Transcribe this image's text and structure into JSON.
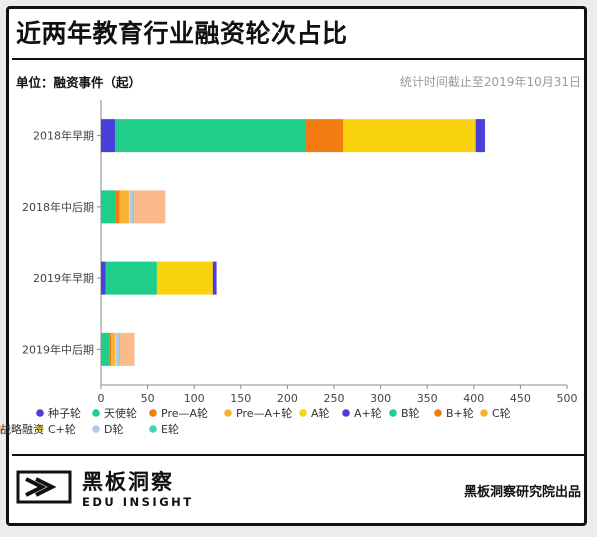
{
  "header": {
    "title": "近两年教育行业融资轮次占比",
    "unit": "单位：融资事件（起）",
    "note": "统计时间截止至2019年10月31日"
  },
  "footer": {
    "brand_cn": "黑板洞察",
    "brand_en": "EDU INSIGHT",
    "source": "黑板洞察研究院出品"
  },
  "chart_data": {
    "type": "bar",
    "orientation": "horizontal",
    "stacked": true,
    "categories": [
      "2018年早期",
      "2018年中后期",
      "2019年早期",
      "2019年中后期"
    ],
    "xlim": [
      0,
      500
    ],
    "xticks": [
      0,
      50,
      100,
      150,
      200,
      250,
      300,
      350,
      400,
      450,
      500
    ],
    "grid": false,
    "legend_position": "bottom",
    "series": [
      {
        "name": "种子轮",
        "color": "#4a3fd8",
        "values": [
          15,
          0,
          5,
          0
        ]
      },
      {
        "name": "天使轮",
        "color": "#1fce8a",
        "values": [
          205,
          0,
          55,
          0
        ]
      },
      {
        "name": "Pre—A轮",
        "color": "#f27b12",
        "values": [
          40,
          0,
          0,
          0
        ]
      },
      {
        "name": "Pre—A+轮",
        "color": "#f9b233",
        "values": [
          0,
          0,
          0,
          0
        ]
      },
      {
        "name": "A轮",
        "color": "#fad30f",
        "values": [
          142,
          0,
          60,
          0
        ]
      },
      {
        "name": "A+轮",
        "color": "#4a3fd8",
        "values": [
          10,
          0,
          4,
          0
        ]
      },
      {
        "name": "B轮",
        "color": "#1fce8a",
        "values": [
          0,
          16,
          0,
          9
        ]
      },
      {
        "name": "B+轮",
        "color": "#f27b12",
        "values": [
          0,
          4,
          0,
          2
        ]
      },
      {
        "name": "C轮",
        "color": "#f9b233",
        "values": [
          0,
          10,
          0,
          4
        ]
      },
      {
        "name": "C+轮",
        "color": "#fbe03c",
        "values": [
          0,
          1,
          0,
          1
        ]
      },
      {
        "name": "D轮",
        "color": "#b9c6e8",
        "values": [
          0,
          3,
          0,
          3
        ]
      },
      {
        "name": "E轮",
        "color": "#3ed9a8",
        "values": [
          0,
          1,
          0,
          1
        ]
      },
      {
        "name": "战略融资",
        "color": "#fbb98c",
        "values": [
          0,
          34,
          0,
          16
        ]
      }
    ]
  }
}
